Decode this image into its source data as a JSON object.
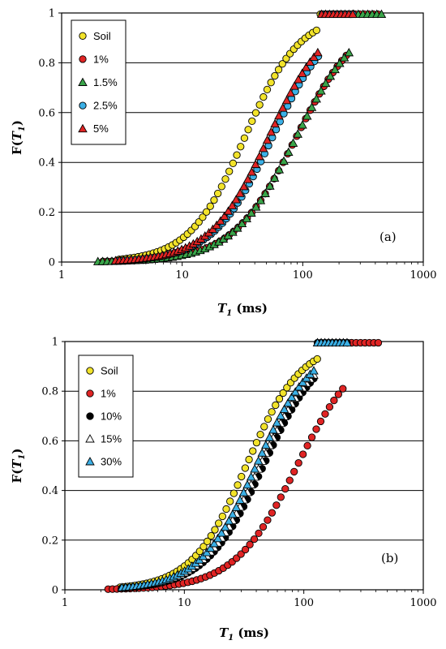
{
  "chart_data": [
    {
      "type": "scatter",
      "panel_label": "(a)",
      "xlabel": "T1 (ms)",
      "xlabel_parts": {
        "var": "T",
        "sub": "1",
        "rest": " (ms)"
      },
      "ylabel": "F(T1)",
      "ylabel_parts": {
        "pre": "F(",
        "var": "T",
        "sub": "1",
        "post": ")"
      },
      "x_scale": "log",
      "xlim": [
        1,
        1000
      ],
      "ylim": [
        0,
        1
      ],
      "x_ticks": [
        "1",
        "10",
        "100",
        "1000"
      ],
      "y_ticks": [
        "0",
        "0.2",
        "0.4",
        "0.6",
        "0.8",
        "1"
      ],
      "grid": "horizontal",
      "legend_position": "top-left",
      "series": [
        {
          "name": "Soil",
          "marker": "circle",
          "color": "#f2e32a",
          "t_range": [
            3.0,
            250
          ],
          "median": 33,
          "spread": 1.5
        },
        {
          "name": "1%",
          "marker": "circle",
          "color": "#e02424",
          "t_range": [
            2.2,
            420
          ],
          "median": 88,
          "spread": 1.72
        },
        {
          "name": "1.5%",
          "marker": "triangle",
          "color": "#3aa54a",
          "t_range": [
            2.0,
            450
          ],
          "median": 88,
          "spread": 1.72
        },
        {
          "name": "2.5%",
          "marker": "circle",
          "color": "#3bb0e6",
          "t_range": [
            3.0,
            260
          ],
          "median": 56,
          "spread": 1.6
        },
        {
          "name": "5%",
          "marker": "triangle",
          "color": "#e02424",
          "t_range": [
            2.8,
            260
          ],
          "median": 52,
          "spread": 1.6
        }
      ]
    },
    {
      "type": "scatter",
      "panel_label": "(b)",
      "xlabel": "T1 (ms)",
      "xlabel_parts": {
        "var": "T",
        "sub": "1",
        "rest": " (ms)"
      },
      "ylabel": "F(T1)",
      "ylabel_parts": {
        "pre": "F(",
        "var": "T",
        "sub": "1",
        "post": ")"
      },
      "x_scale": "log",
      "xlim": [
        1,
        1000
      ],
      "ylim": [
        0,
        1
      ],
      "x_ticks": [
        "1",
        "10",
        "100",
        "1000"
      ],
      "y_ticks": [
        "0",
        "0.2",
        "0.4",
        "0.6",
        "0.8",
        "1"
      ],
      "grid": "horizontal",
      "legend_position": "top-left",
      "series": [
        {
          "name": "Soil",
          "marker": "circle",
          "color": "#f2e32a",
          "t_range": [
            2.9,
            250
          ],
          "median": 33,
          "spread": 1.5
        },
        {
          "name": "1%",
          "marker": "circle",
          "color": "#e02424",
          "t_range": [
            2.3,
            420
          ],
          "median": 88,
          "spread": 1.72
        },
        {
          "name": "10%",
          "marker": "circle",
          "color": "#000000",
          "t_range": [
            3.0,
            230
          ],
          "median": 46,
          "spread": 1.58
        },
        {
          "name": "15%",
          "marker": "triangle",
          "color": "#ffffff",
          "t_range": [
            3.0,
            230
          ],
          "median": 43,
          "spread": 1.58
        },
        {
          "name": "30%",
          "marker": "triangle",
          "color": "#3bb0e6",
          "t_range": [
            3.0,
            230
          ],
          "median": 40,
          "spread": 1.56
        }
      ]
    }
  ]
}
